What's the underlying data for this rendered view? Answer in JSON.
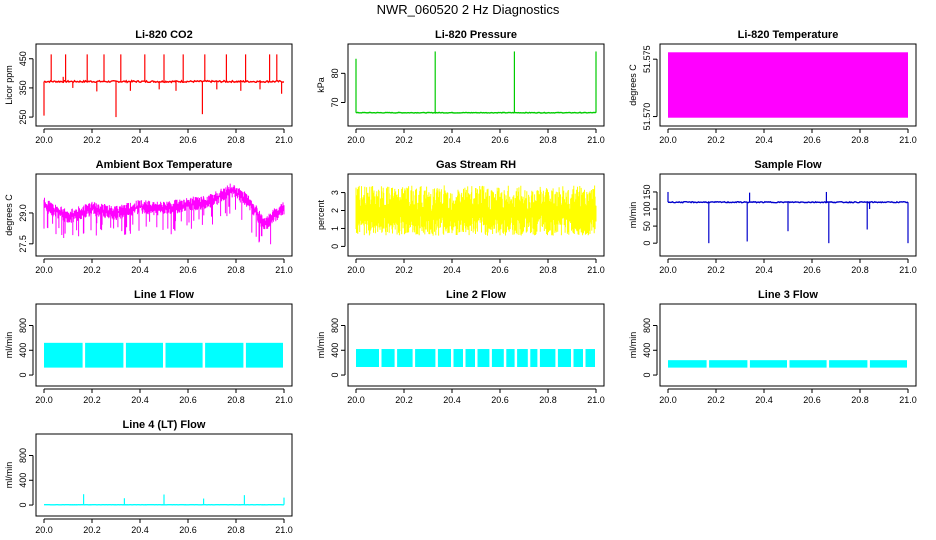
{
  "figure_title": "NWR_060520  2 Hz Diagnostics",
  "chart_data": [
    {
      "type": "line",
      "title": "Li-820 CO2",
      "ylabel": "Licor ppm",
      "color": "#ff0000",
      "xlim": [
        20.0,
        21.0
      ],
      "ylim": [
        240,
        480
      ],
      "xticks": [
        "20.0",
        "20.2",
        "20.4",
        "20.6",
        "20.8",
        "21.0"
      ],
      "yticks": [
        "250",
        "350",
        "450"
      ],
      "baseline": 372,
      "noise": 6,
      "spikes": [
        {
          "x": 20.0,
          "y": 255
        },
        {
          "x": 20.03,
          "y": 465
        },
        {
          "x": 20.08,
          "y": 388
        },
        {
          "x": 20.09,
          "y": 465
        },
        {
          "x": 20.12,
          "y": 350
        },
        {
          "x": 20.18,
          "y": 465
        },
        {
          "x": 20.22,
          "y": 338
        },
        {
          "x": 20.25,
          "y": 465
        },
        {
          "x": 20.3,
          "y": 250
        },
        {
          "x": 20.32,
          "y": 465
        },
        {
          "x": 20.36,
          "y": 340
        },
        {
          "x": 20.42,
          "y": 465
        },
        {
          "x": 20.48,
          "y": 345
        },
        {
          "x": 20.5,
          "y": 465
        },
        {
          "x": 20.55,
          "y": 340
        },
        {
          "x": 20.58,
          "y": 465
        },
        {
          "x": 20.66,
          "y": 260
        },
        {
          "x": 20.67,
          "y": 465
        },
        {
          "x": 20.72,
          "y": 345
        },
        {
          "x": 20.76,
          "y": 465
        },
        {
          "x": 20.82,
          "y": 340
        },
        {
          "x": 20.84,
          "y": 465
        },
        {
          "x": 20.9,
          "y": 345
        },
        {
          "x": 20.94,
          "y": 465
        },
        {
          "x": 20.97,
          "y": 465
        },
        {
          "x": 20.99,
          "y": 330
        }
      ]
    },
    {
      "type": "line",
      "title": "Li-820 Pressure",
      "ylabel": "kPa",
      "color": "#00cc00",
      "xlim": [
        20.0,
        21.0
      ],
      "ylim": [
        64,
        88
      ],
      "xticks": [
        "20.0",
        "20.2",
        "20.4",
        "20.6",
        "20.8",
        "21.0"
      ],
      "yticks": [
        "70",
        "80"
      ],
      "baseline": 66.5,
      "noise": 0.2,
      "spikes": [
        {
          "x": 20.0,
          "y": 85
        },
        {
          "x": 20.33,
          "y": 87.5
        },
        {
          "x": 20.66,
          "y": 87.5
        },
        {
          "x": 21.0,
          "y": 87.5
        }
      ]
    },
    {
      "type": "area",
      "title": "Li-820 Temperature",
      "ylabel": "degrees C",
      "color": "#ff00ff",
      "xlim": [
        20.0,
        21.0
      ],
      "ylim": [
        51.5697,
        51.5758
      ],
      "xticks": [
        "20.0",
        "20.2",
        "20.4",
        "20.6",
        "20.8",
        "21.0"
      ],
      "yticks": [
        "51.570",
        "51.575"
      ],
      "fill_range": [
        51.5699,
        51.5756
      ]
    },
    {
      "type": "line",
      "title": "Ambient Box Temperature",
      "ylabel": "degrees C",
      "color": "#ff00ff",
      "xlim": [
        20.0,
        21.0
      ],
      "ylim": [
        27.2,
        30.6
      ],
      "xticks": [
        "20.0",
        "20.2",
        "20.4",
        "20.6",
        "20.8",
        "21.0"
      ],
      "yticks": [
        "27.5",
        "29.0"
      ],
      "trend": [
        {
          "x": 20.0,
          "y": 29.4
        },
        {
          "x": 20.1,
          "y": 28.8
        },
        {
          "x": 20.2,
          "y": 29.2
        },
        {
          "x": 20.3,
          "y": 29.0
        },
        {
          "x": 20.4,
          "y": 29.3
        },
        {
          "x": 20.5,
          "y": 29.2
        },
        {
          "x": 20.6,
          "y": 29.4
        },
        {
          "x": 20.7,
          "y": 29.6
        },
        {
          "x": 20.78,
          "y": 30.1
        },
        {
          "x": 20.85,
          "y": 29.6
        },
        {
          "x": 20.92,
          "y": 28.4
        },
        {
          "x": 20.96,
          "y": 28.9
        },
        {
          "x": 21.0,
          "y": 29.2
        }
      ],
      "noise": 0.35,
      "dips": 1.3
    },
    {
      "type": "line",
      "title": "Gas Stream RH",
      "ylabel": "percent",
      "color": "#ffff00",
      "xlim": [
        20.0,
        21.0
      ],
      "ylim": [
        -0.2,
        3.7
      ],
      "xticks": [
        "20.0",
        "20.2",
        "20.4",
        "20.6",
        "20.8",
        "21.0"
      ],
      "yticks": [
        "0",
        "1",
        "2",
        "3"
      ],
      "fill_range": [
        0.1,
        3.4
      ]
    },
    {
      "type": "line",
      "title": "Sample Flow",
      "ylabel": "ml/min",
      "color": "#0000cc",
      "xlim": [
        20.0,
        21.0
      ],
      "ylim": [
        -20,
        185
      ],
      "xticks": [
        "20.0",
        "20.2",
        "20.4",
        "20.6",
        "20.8",
        "21.0"
      ],
      "yticks": [
        "0",
        "50",
        "100",
        "150"
      ],
      "baseline": 120,
      "noise": 3,
      "spikes": [
        {
          "x": 20.0,
          "y": 150
        },
        {
          "x": 20.17,
          "y": 0
        },
        {
          "x": 20.33,
          "y": 5
        },
        {
          "x": 20.34,
          "y": 148
        },
        {
          "x": 20.5,
          "y": 35
        },
        {
          "x": 20.66,
          "y": 150
        },
        {
          "x": 20.67,
          "y": 0
        },
        {
          "x": 20.83,
          "y": 40
        },
        {
          "x": 20.84,
          "y": 100
        },
        {
          "x": 21.0,
          "y": 0
        }
      ]
    },
    {
      "type": "area",
      "title": "Line 1 Flow",
      "ylabel": "ml/min",
      "color": "#00ffff",
      "xlim": [
        20.0,
        21.0
      ],
      "ylim": [
        -80,
        1050
      ],
      "xticks": [
        "20.0",
        "20.2",
        "20.4",
        "20.6",
        "20.8",
        "21.0"
      ],
      "yticks": [
        "0",
        "400",
        "800"
      ],
      "band": [
        120,
        520
      ],
      "gaps": [
        20.165,
        20.335,
        20.5,
        20.665,
        20.835
      ]
    },
    {
      "type": "area",
      "title": "Line 2 Flow",
      "ylabel": "ml/min",
      "color": "#00ffff",
      "xlim": [
        20.0,
        21.0
      ],
      "ylim": [
        -80,
        1050
      ],
      "xticks": [
        "20.0",
        "20.2",
        "20.4",
        "20.6",
        "20.8",
        "21.0"
      ],
      "yticks": [
        "0",
        "400",
        "800"
      ],
      "band": [
        130,
        420
      ],
      "gaps": [
        20.1,
        20.165,
        20.24,
        20.335,
        20.4,
        20.45,
        20.5,
        20.56,
        20.62,
        20.665,
        20.72,
        20.76,
        20.835,
        20.9,
        20.95
      ]
    },
    {
      "type": "area",
      "title": "Line 3 Flow",
      "ylabel": "ml/min",
      "color": "#00ffff",
      "xlim": [
        20.0,
        21.0
      ],
      "ylim": [
        -80,
        1050
      ],
      "xticks": [
        "20.0",
        "20.2",
        "20.4",
        "20.6",
        "20.8",
        "21.0"
      ],
      "yticks": [
        "0",
        "400",
        "800"
      ],
      "band": [
        120,
        240
      ],
      "gaps": [
        20.165,
        20.335,
        20.5,
        20.665,
        20.835
      ]
    },
    {
      "type": "line",
      "title": "Line 4 (LT) Flow",
      "ylabel": "ml/min",
      "color": "#00ffff",
      "xlim": [
        20.0,
        21.0
      ],
      "ylim": [
        -80,
        1050
      ],
      "xticks": [
        "20.0",
        "20.2",
        "20.4",
        "20.6",
        "20.8",
        "21.0"
      ],
      "yticks": [
        "0",
        "400",
        "800"
      ],
      "baseline": 5,
      "noise": 2,
      "spikes": [
        {
          "x": 20.165,
          "y": 175
        },
        {
          "x": 20.335,
          "y": 110
        },
        {
          "x": 20.5,
          "y": 170
        },
        {
          "x": 20.665,
          "y": 105
        },
        {
          "x": 20.835,
          "y": 160
        },
        {
          "x": 21.0,
          "y": 120
        }
      ]
    }
  ]
}
